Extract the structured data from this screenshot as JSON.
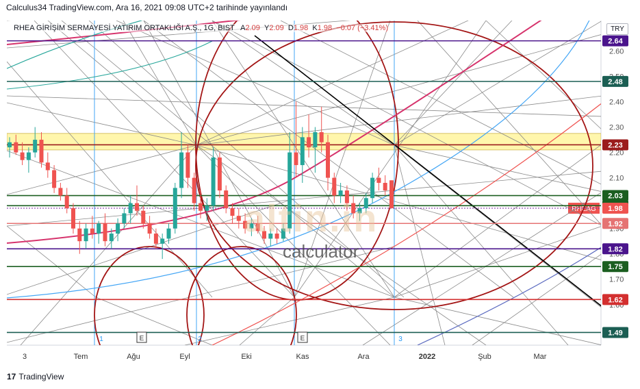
{
  "header": {
    "text": "Calculus34 TradingView.com, Ara 16, 2021 09:08 UTC+2 tarihinde yayınlandı"
  },
  "legend": {
    "symbol": "RHEA GİRİŞİM SERMAYESİ YATIRIM ORTAKLIĞI A.Ş., 1G, BIST",
    "open_label": "A",
    "open": "2.09",
    "high_label": "Y",
    "high": "2.09",
    "low_label": "D",
    "low": "1.98",
    "close_label": "K",
    "close": "1.98",
    "change": "−0.07 (−3.41%)"
  },
  "currency": "TRY",
  "watermark": {
    "brand": "altin.in",
    "sub": "calculator"
  },
  "footer": {
    "logo": "17",
    "text": "TradingView"
  },
  "colors": {
    "candle_up": "#26a69a",
    "candle_down": "#ef5350",
    "red_arc": "#b22222",
    "magenta_arc": "#d6336c",
    "blue_line": "#2196f3",
    "black_line": "#000000",
    "yellow_band": "#fff59d"
  },
  "chart_data": {
    "type": "candlestick",
    "symbol": "RHEAG",
    "interval": "1G",
    "ylim": [
      1.44,
      2.72
    ],
    "y_ticks": [
      "2.60",
      "2.50",
      "2.40",
      "2.30",
      "2.20",
      "2.10",
      "2.00",
      "1.90",
      "1.80",
      "1.70",
      "1.60",
      "1.50"
    ],
    "x_ticks": [
      "3",
      "Tem",
      "Ağu",
      "Eyl",
      "Eki",
      "Kas",
      "Ara",
      "2022",
      "Şub",
      "Mar"
    ],
    "markers": [
      {
        "label": "1",
        "type": "number"
      },
      {
        "label": "E",
        "type": "event"
      },
      {
        "label": "2",
        "type": "number"
      },
      {
        "label": "E",
        "type": "event"
      },
      {
        "label": "3",
        "type": "number"
      }
    ],
    "price_levels": [
      {
        "value": "2.64",
        "color": "#4a148c"
      },
      {
        "value": "2.48",
        "color": "#1b5e53"
      },
      {
        "value": "2.23",
        "color": "#9b1c1c"
      },
      {
        "value": "2.03",
        "color": "#1b5e20"
      },
      {
        "value": "1.99",
        "color": "#1b5e20"
      },
      {
        "value": "1.92",
        "color": "#e57373"
      },
      {
        "value": "1.82",
        "color": "#4a148c"
      },
      {
        "value": "1.75",
        "color": "#1b5e20"
      },
      {
        "value": "1.62",
        "color": "#d32f2f"
      },
      {
        "value": "1.49",
        "color": "#1b5e53"
      }
    ],
    "last_price": {
      "label": "RHEAG",
      "value": "1.98",
      "color": "#ef5350"
    },
    "candles": [
      {
        "o": 2.22,
        "h": 2.26,
        "l": 2.18,
        "c": 2.24
      },
      {
        "o": 2.24,
        "h": 2.27,
        "l": 2.19,
        "c": 2.2
      },
      {
        "o": 2.2,
        "h": 2.24,
        "l": 2.15,
        "c": 2.17
      },
      {
        "o": 2.17,
        "h": 2.22,
        "l": 2.12,
        "c": 2.2
      },
      {
        "o": 2.2,
        "h": 2.3,
        "l": 2.18,
        "c": 2.25
      },
      {
        "o": 2.25,
        "h": 2.28,
        "l": 2.14,
        "c": 2.16
      },
      {
        "o": 2.16,
        "h": 2.2,
        "l": 2.1,
        "c": 2.13
      },
      {
        "o": 2.13,
        "h": 2.15,
        "l": 2.04,
        "c": 2.06
      },
      {
        "o": 2.06,
        "h": 2.08,
        "l": 2.01,
        "c": 2.03
      },
      {
        "o": 2.03,
        "h": 2.06,
        "l": 1.96,
        "c": 1.98
      },
      {
        "o": 1.98,
        "h": 2.0,
        "l": 1.88,
        "c": 1.9
      },
      {
        "o": 1.9,
        "h": 1.93,
        "l": 1.8,
        "c": 1.85
      },
      {
        "o": 1.85,
        "h": 1.92,
        "l": 1.82,
        "c": 1.9
      },
      {
        "o": 1.9,
        "h": 1.95,
        "l": 1.86,
        "c": 1.88
      },
      {
        "o": 1.88,
        "h": 1.93,
        "l": 1.84,
        "c": 1.92
      },
      {
        "o": 1.92,
        "h": 1.96,
        "l": 1.83,
        "c": 1.85
      },
      {
        "o": 1.85,
        "h": 1.9,
        "l": 1.82,
        "c": 1.88
      },
      {
        "o": 1.88,
        "h": 1.94,
        "l": 1.85,
        "c": 1.92
      },
      {
        "o": 1.92,
        "h": 1.98,
        "l": 1.9,
        "c": 1.96
      },
      {
        "o": 1.96,
        "h": 2.03,
        "l": 1.92,
        "c": 2.0
      },
      {
        "o": 2.0,
        "h": 2.07,
        "l": 1.95,
        "c": 1.97
      },
      {
        "o": 1.97,
        "h": 1.99,
        "l": 1.9,
        "c": 1.92
      },
      {
        "o": 1.92,
        "h": 1.95,
        "l": 1.86,
        "c": 1.88
      },
      {
        "o": 1.88,
        "h": 1.9,
        "l": 1.82,
        "c": 1.84
      },
      {
        "o": 1.84,
        "h": 1.88,
        "l": 1.78,
        "c": 1.86
      },
      {
        "o": 1.86,
        "h": 1.92,
        "l": 1.84,
        "c": 1.9
      },
      {
        "o": 1.9,
        "h": 2.08,
        "l": 1.88,
        "c": 2.06
      },
      {
        "o": 2.06,
        "h": 2.28,
        "l": 2.02,
        "c": 2.2
      },
      {
        "o": 2.2,
        "h": 2.23,
        "l": 2.06,
        "c": 2.1
      },
      {
        "o": 2.1,
        "h": 2.12,
        "l": 1.97,
        "c": 2.0
      },
      {
        "o": 2.0,
        "h": 2.05,
        "l": 1.94,
        "c": 1.97
      },
      {
        "o": 1.97,
        "h": 2.02,
        "l": 1.93,
        "c": 1.99
      },
      {
        "o": 1.99,
        "h": 2.22,
        "l": 1.97,
        "c": 2.18
      },
      {
        "o": 2.18,
        "h": 2.2,
        "l": 2.02,
        "c": 2.05
      },
      {
        "o": 2.05,
        "h": 2.07,
        "l": 1.96,
        "c": 1.98
      },
      {
        "o": 1.98,
        "h": 2.0,
        "l": 1.92,
        "c": 1.95
      },
      {
        "o": 1.95,
        "h": 1.98,
        "l": 1.9,
        "c": 1.93
      },
      {
        "o": 1.93,
        "h": 1.96,
        "l": 1.88,
        "c": 1.9
      },
      {
        "o": 1.9,
        "h": 1.94,
        "l": 1.87,
        "c": 1.92
      },
      {
        "o": 1.92,
        "h": 1.95,
        "l": 1.88,
        "c": 1.89
      },
      {
        "o": 1.89,
        "h": 1.91,
        "l": 1.84,
        "c": 1.86
      },
      {
        "o": 1.86,
        "h": 1.9,
        "l": 1.83,
        "c": 1.88
      },
      {
        "o": 1.88,
        "h": 1.9,
        "l": 1.84,
        "c": 1.86
      },
      {
        "o": 1.86,
        "h": 1.92,
        "l": 1.85,
        "c": 1.9
      },
      {
        "o": 1.9,
        "h": 2.28,
        "l": 1.88,
        "c": 2.2
      },
      {
        "o": 2.2,
        "h": 2.4,
        "l": 2.1,
        "c": 2.15
      },
      {
        "o": 2.15,
        "h": 2.3,
        "l": 2.08,
        "c": 2.26
      },
      {
        "o": 2.26,
        "h": 2.35,
        "l": 2.18,
        "c": 2.22
      },
      {
        "o": 2.22,
        "h": 2.3,
        "l": 2.12,
        "c": 2.28
      },
      {
        "o": 2.28,
        "h": 2.38,
        "l": 2.2,
        "c": 2.24
      },
      {
        "o": 2.24,
        "h": 2.27,
        "l": 2.05,
        "c": 2.1
      },
      {
        "o": 2.1,
        "h": 2.12,
        "l": 2.0,
        "c": 2.03
      },
      {
        "o": 2.03,
        "h": 2.08,
        "l": 2.0,
        "c": 2.05
      },
      {
        "o": 2.05,
        "h": 2.07,
        "l": 1.97,
        "c": 2.0
      },
      {
        "o": 2.0,
        "h": 2.03,
        "l": 1.94,
        "c": 1.96
      },
      {
        "o": 1.96,
        "h": 2.0,
        "l": 1.93,
        "c": 1.98
      },
      {
        "o": 1.98,
        "h": 2.04,
        "l": 1.96,
        "c": 2.02
      },
      {
        "o": 2.02,
        "h": 2.12,
        "l": 2.0,
        "c": 2.1
      },
      {
        "o": 2.1,
        "h": 2.14,
        "l": 2.05,
        "c": 2.08
      },
      {
        "o": 2.08,
        "h": 2.11,
        "l": 2.03,
        "c": 2.05
      },
      {
        "o": 2.09,
        "h": 2.09,
        "l": 1.98,
        "c": 1.98
      }
    ]
  }
}
